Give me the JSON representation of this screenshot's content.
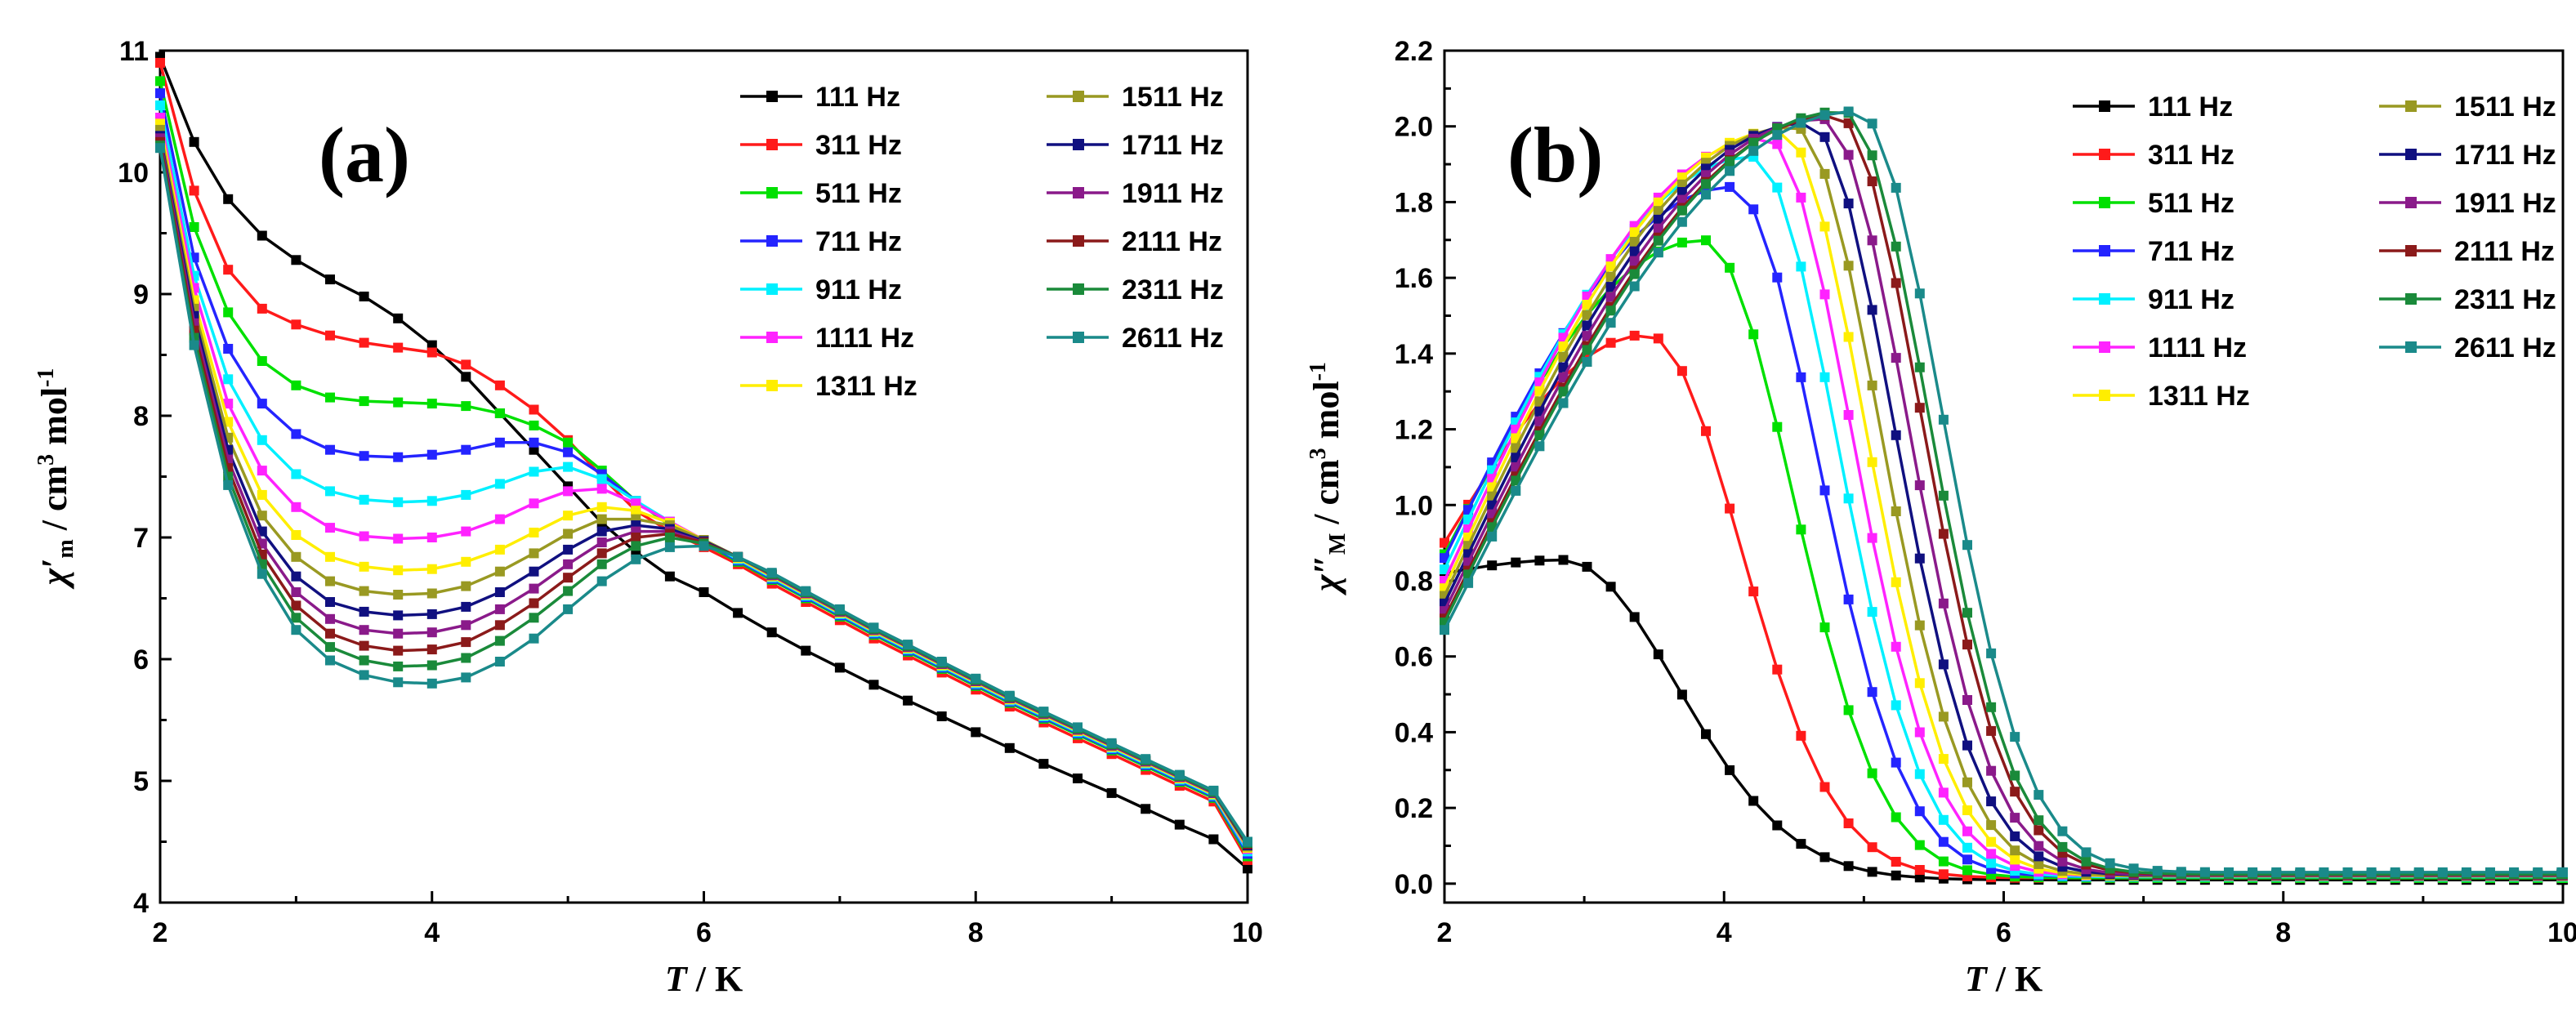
{
  "chart_data": [
    {
      "type": "line",
      "panel_label": "(a)",
      "xlabel_main": "T",
      "xlabel_unit": " / K",
      "ylabel_main": "χ′",
      "ylabel_sub": "m",
      "ylabel_unit": " / cm",
      "ylabel_unit_sup": "3",
      "ylabel_mol": " mol",
      "ylabel_mol_sup": "-1",
      "xlim": [
        2,
        10
      ],
      "ylim": [
        4,
        11
      ],
      "xticks": [
        "2",
        "4",
        "6",
        "8",
        "10"
      ],
      "yticks": [
        "4",
        "5",
        "6",
        "7",
        "8",
        "9",
        "10",
        "11"
      ],
      "legend_position": "top-right",
      "x": [
        2.0,
        2.25,
        2.5,
        2.75,
        3.0,
        3.25,
        3.5,
        3.75,
        4.0,
        4.25,
        4.5,
        4.75,
        5.0,
        5.25,
        5.5,
        5.75,
        6.0,
        6.25,
        6.5,
        6.75,
        7.0,
        7.25,
        7.5,
        7.75,
        8.0,
        8.25,
        8.5,
        8.75,
        9.0,
        9.25,
        9.5,
        9.75,
        10.0
      ],
      "series": [
        {
          "name": "111 Hz",
          "color": "#000000",
          "values": [
            10.95,
            10.25,
            9.78,
            9.48,
            9.28,
            9.12,
            8.98,
            8.8,
            8.58,
            8.32,
            8.02,
            7.72,
            7.42,
            7.12,
            6.88,
            6.68,
            6.55,
            6.38,
            6.22,
            6.07,
            5.93,
            5.79,
            5.66,
            5.53,
            5.4,
            5.27,
            5.14,
            5.02,
            4.9,
            4.77,
            4.64,
            4.52,
            4.28
          ]
        },
        {
          "name": "311 Hz",
          "color": "#ff1a1a",
          "values": [
            10.9,
            9.85,
            9.2,
            8.88,
            8.75,
            8.66,
            8.6,
            8.56,
            8.52,
            8.42,
            8.25,
            8.05,
            7.8,
            7.5,
            7.22,
            7.05,
            6.92,
            6.78,
            6.62,
            6.47,
            6.32,
            6.17,
            6.03,
            5.89,
            5.75,
            5.61,
            5.48,
            5.35,
            5.22,
            5.09,
            4.96,
            4.83,
            4.35
          ]
        },
        {
          "name": "511 Hz",
          "color": "#00e000",
          "values": [
            10.75,
            9.55,
            8.85,
            8.45,
            8.25,
            8.15,
            8.12,
            8.11,
            8.1,
            8.08,
            8.02,
            7.92,
            7.78,
            7.55,
            7.3,
            7.1,
            6.95,
            6.8,
            6.65,
            6.5,
            6.35,
            6.2,
            6.06,
            5.92,
            5.78,
            5.64,
            5.51,
            5.38,
            5.25,
            5.12,
            4.99,
            4.86,
            4.38
          ]
        },
        {
          "name": "711 Hz",
          "color": "#2424ff",
          "values": [
            10.65,
            9.3,
            8.55,
            8.1,
            7.85,
            7.72,
            7.67,
            7.66,
            7.68,
            7.72,
            7.78,
            7.78,
            7.7,
            7.52,
            7.3,
            7.12,
            6.96,
            6.81,
            6.66,
            6.51,
            6.36,
            6.21,
            6.07,
            5.93,
            5.79,
            5.65,
            5.52,
            5.39,
            5.26,
            5.13,
            5.0,
            4.87,
            4.4
          ]
        },
        {
          "name": "911 Hz",
          "color": "#00f0ff",
          "values": [
            10.55,
            9.15,
            8.3,
            7.8,
            7.52,
            7.38,
            7.31,
            7.29,
            7.3,
            7.35,
            7.44,
            7.54,
            7.58,
            7.48,
            7.3,
            7.13,
            6.97,
            6.82,
            6.67,
            6.52,
            6.37,
            6.22,
            6.08,
            5.94,
            5.8,
            5.66,
            5.53,
            5.4,
            5.27,
            5.14,
            5.01,
            4.88,
            4.42
          ]
        },
        {
          "name": "1111 Hz",
          "color": "#ff22ff",
          "values": [
            10.45,
            9.05,
            8.1,
            7.55,
            7.25,
            7.08,
            7.01,
            6.99,
            7.0,
            7.05,
            7.15,
            7.28,
            7.38,
            7.4,
            7.28,
            7.13,
            6.98,
            6.83,
            6.68,
            6.53,
            6.38,
            6.23,
            6.09,
            5.95,
            5.81,
            5.67,
            5.54,
            5.41,
            5.28,
            5.15,
            5.02,
            4.89,
            4.44
          ]
        },
        {
          "name": "1311 Hz",
          "color": "#ffee00",
          "values": [
            10.4,
            8.95,
            7.95,
            7.35,
            7.02,
            6.84,
            6.76,
            6.73,
            6.74,
            6.8,
            6.9,
            7.04,
            7.18,
            7.25,
            7.22,
            7.12,
            6.98,
            6.83,
            6.68,
            6.53,
            6.38,
            6.23,
            6.09,
            5.95,
            5.81,
            5.67,
            5.54,
            5.41,
            5.28,
            5.15,
            5.02,
            4.89,
            4.45
          ]
        },
        {
          "name": "1511 Hz",
          "color": "#999922",
          "values": [
            10.35,
            8.88,
            7.82,
            7.18,
            6.84,
            6.64,
            6.56,
            6.53,
            6.54,
            6.6,
            6.72,
            6.87,
            7.03,
            7.15,
            7.15,
            7.1,
            6.98,
            6.84,
            6.69,
            6.54,
            6.39,
            6.24,
            6.1,
            5.96,
            5.82,
            5.68,
            5.55,
            5.42,
            5.29,
            5.16,
            5.03,
            4.9,
            4.46
          ]
        },
        {
          "name": "1711 Hz",
          "color": "#101080",
          "values": [
            10.3,
            8.82,
            7.72,
            7.05,
            6.68,
            6.47,
            6.39,
            6.36,
            6.37,
            6.43,
            6.55,
            6.72,
            6.9,
            7.05,
            7.1,
            7.07,
            6.97,
            6.84,
            6.69,
            6.54,
            6.39,
            6.24,
            6.1,
            5.96,
            5.82,
            5.68,
            5.55,
            5.42,
            5.29,
            5.16,
            5.03,
            4.9,
            4.47
          ]
        },
        {
          "name": "1911 Hz",
          "color": "#8a1a8a",
          "values": [
            10.28,
            8.76,
            7.64,
            6.95,
            6.55,
            6.33,
            6.24,
            6.21,
            6.22,
            6.28,
            6.41,
            6.58,
            6.78,
            6.96,
            7.05,
            7.05,
            6.96,
            6.84,
            6.69,
            6.54,
            6.39,
            6.24,
            6.1,
            5.96,
            5.82,
            5.68,
            5.55,
            5.42,
            5.29,
            5.16,
            5.03,
            4.9,
            4.48
          ]
        },
        {
          "name": "2111 Hz",
          "color": "#8b1a1a",
          "values": [
            10.25,
            8.7,
            7.57,
            6.86,
            6.44,
            6.21,
            6.11,
            6.07,
            6.08,
            6.14,
            6.28,
            6.46,
            6.67,
            6.87,
            7.0,
            7.03,
            6.96,
            6.84,
            6.7,
            6.55,
            6.4,
            6.25,
            6.11,
            5.97,
            5.83,
            5.69,
            5.56,
            5.43,
            5.3,
            5.17,
            5.04,
            4.91,
            4.48
          ]
        },
        {
          "name": "2311 Hz",
          "color": "#1a8a3a",
          "values": [
            10.22,
            8.64,
            7.5,
            6.78,
            6.34,
            6.1,
            5.99,
            5.94,
            5.95,
            6.01,
            6.15,
            6.34,
            6.56,
            6.78,
            6.93,
            7.0,
            6.95,
            6.84,
            6.7,
            6.55,
            6.4,
            6.25,
            6.11,
            5.97,
            5.83,
            5.69,
            5.56,
            5.43,
            5.3,
            5.17,
            5.04,
            4.91,
            4.49
          ]
        },
        {
          "name": "2611 Hz",
          "color": "#1a8a8a",
          "values": [
            10.2,
            8.58,
            7.43,
            6.7,
            6.24,
            5.99,
            5.87,
            5.81,
            5.8,
            5.85,
            5.98,
            6.17,
            6.41,
            6.64,
            6.82,
            6.92,
            6.93,
            6.84,
            6.71,
            6.56,
            6.41,
            6.26,
            6.12,
            5.98,
            5.84,
            5.7,
            5.57,
            5.44,
            5.31,
            5.18,
            5.05,
            4.92,
            4.5
          ]
        }
      ]
    },
    {
      "type": "line",
      "panel_label": "(b)",
      "xlabel_main": "T",
      "xlabel_unit": " / K",
      "ylabel_main": "χ″",
      "ylabel_sub": "M",
      "ylabel_unit": " / cm",
      "ylabel_unit_sup": "3",
      "ylabel_mol": " mol",
      "ylabel_mol_sup": "-1",
      "xlim": [
        2,
        10
      ],
      "ylim": [
        -0.05,
        2.2
      ],
      "xticks": [
        "2",
        "4",
        "6",
        "8",
        "10"
      ],
      "yticks": [
        "0.0",
        "0.2",
        "0.4",
        "0.6",
        "0.8",
        "1.0",
        "1.2",
        "1.4",
        "1.6",
        "1.8",
        "2.0",
        "2.2"
      ],
      "legend_position": "top-right",
      "peaks": [
        {
          "name": "111 Hz",
          "color": "#000000",
          "x0": 2.0,
          "y0": 0.82,
          "xp": 2.85,
          "yp": 0.855,
          "xe": 10.0,
          "ye": 0.01,
          "d": 1.15
        },
        {
          "name": "311 Hz",
          "color": "#ff1a1a",
          "x0": 2.0,
          "y0": 0.9,
          "xp": 3.45,
          "yp": 1.45,
          "xe": 10.0,
          "ye": 0.015,
          "d": 0.95
        },
        {
          "name": "511 Hz",
          "color": "#00e000",
          "x0": 2.0,
          "y0": 0.87,
          "xp": 3.85,
          "yp": 1.7,
          "xe": 10.0,
          "ye": 0.015,
          "d": 0.9
        },
        {
          "name": "711 Hz",
          "color": "#2424ff",
          "x0": 2.0,
          "y0": 0.86,
          "xp": 4.05,
          "yp": 1.84,
          "xe": 10.0,
          "ye": 0.018,
          "d": 0.88
        },
        {
          "name": "911 Hz",
          "color": "#00f0ff",
          "x0": 2.0,
          "y0": 0.83,
          "xp": 4.2,
          "yp": 1.92,
          "xe": 10.0,
          "ye": 0.018,
          "d": 0.86
        },
        {
          "name": "1111 Hz",
          "color": "#ff22ff",
          "x0": 2.0,
          "y0": 0.8,
          "xp": 4.3,
          "yp": 1.97,
          "xe": 10.0,
          "ye": 0.02,
          "d": 0.86
        },
        {
          "name": "1311 Hz",
          "color": "#ffee00",
          "x0": 2.0,
          "y0": 0.78,
          "xp": 4.4,
          "yp": 1.99,
          "xe": 10.0,
          "ye": 0.02,
          "d": 0.86
        },
        {
          "name": "1511 Hz",
          "color": "#999922",
          "x0": 2.0,
          "y0": 0.76,
          "xp": 4.5,
          "yp": 2.0,
          "xe": 10.0,
          "ye": 0.02,
          "d": 0.86
        },
        {
          "name": "1711 Hz",
          "color": "#101080",
          "x0": 2.0,
          "y0": 0.74,
          "xp": 4.6,
          "yp": 2.01,
          "xe": 10.0,
          "ye": 0.022,
          "d": 0.86
        },
        {
          "name": "1911 Hz",
          "color": "#8a1a8a",
          "x0": 2.0,
          "y0": 0.72,
          "xp": 4.7,
          "yp": 2.02,
          "xe": 10.0,
          "ye": 0.022,
          "d": 0.86
        },
        {
          "name": "2111 Hz",
          "color": "#8b1a1a",
          "x0": 2.0,
          "y0": 0.7,
          "xp": 4.8,
          "yp": 2.03,
          "xe": 10.0,
          "ye": 0.024,
          "d": 0.86
        },
        {
          "name": "2311 Hz",
          "color": "#1a8a3a",
          "x0": 2.0,
          "y0": 0.69,
          "xp": 4.85,
          "yp": 2.04,
          "xe": 10.0,
          "ye": 0.025,
          "d": 0.86
        },
        {
          "name": "2611 Hz",
          "color": "#1a8a8a",
          "x0": 2.0,
          "y0": 0.67,
          "xp": 4.95,
          "yp": 2.04,
          "xe": 10.0,
          "ye": 0.03,
          "d": 0.86
        }
      ]
    }
  ]
}
